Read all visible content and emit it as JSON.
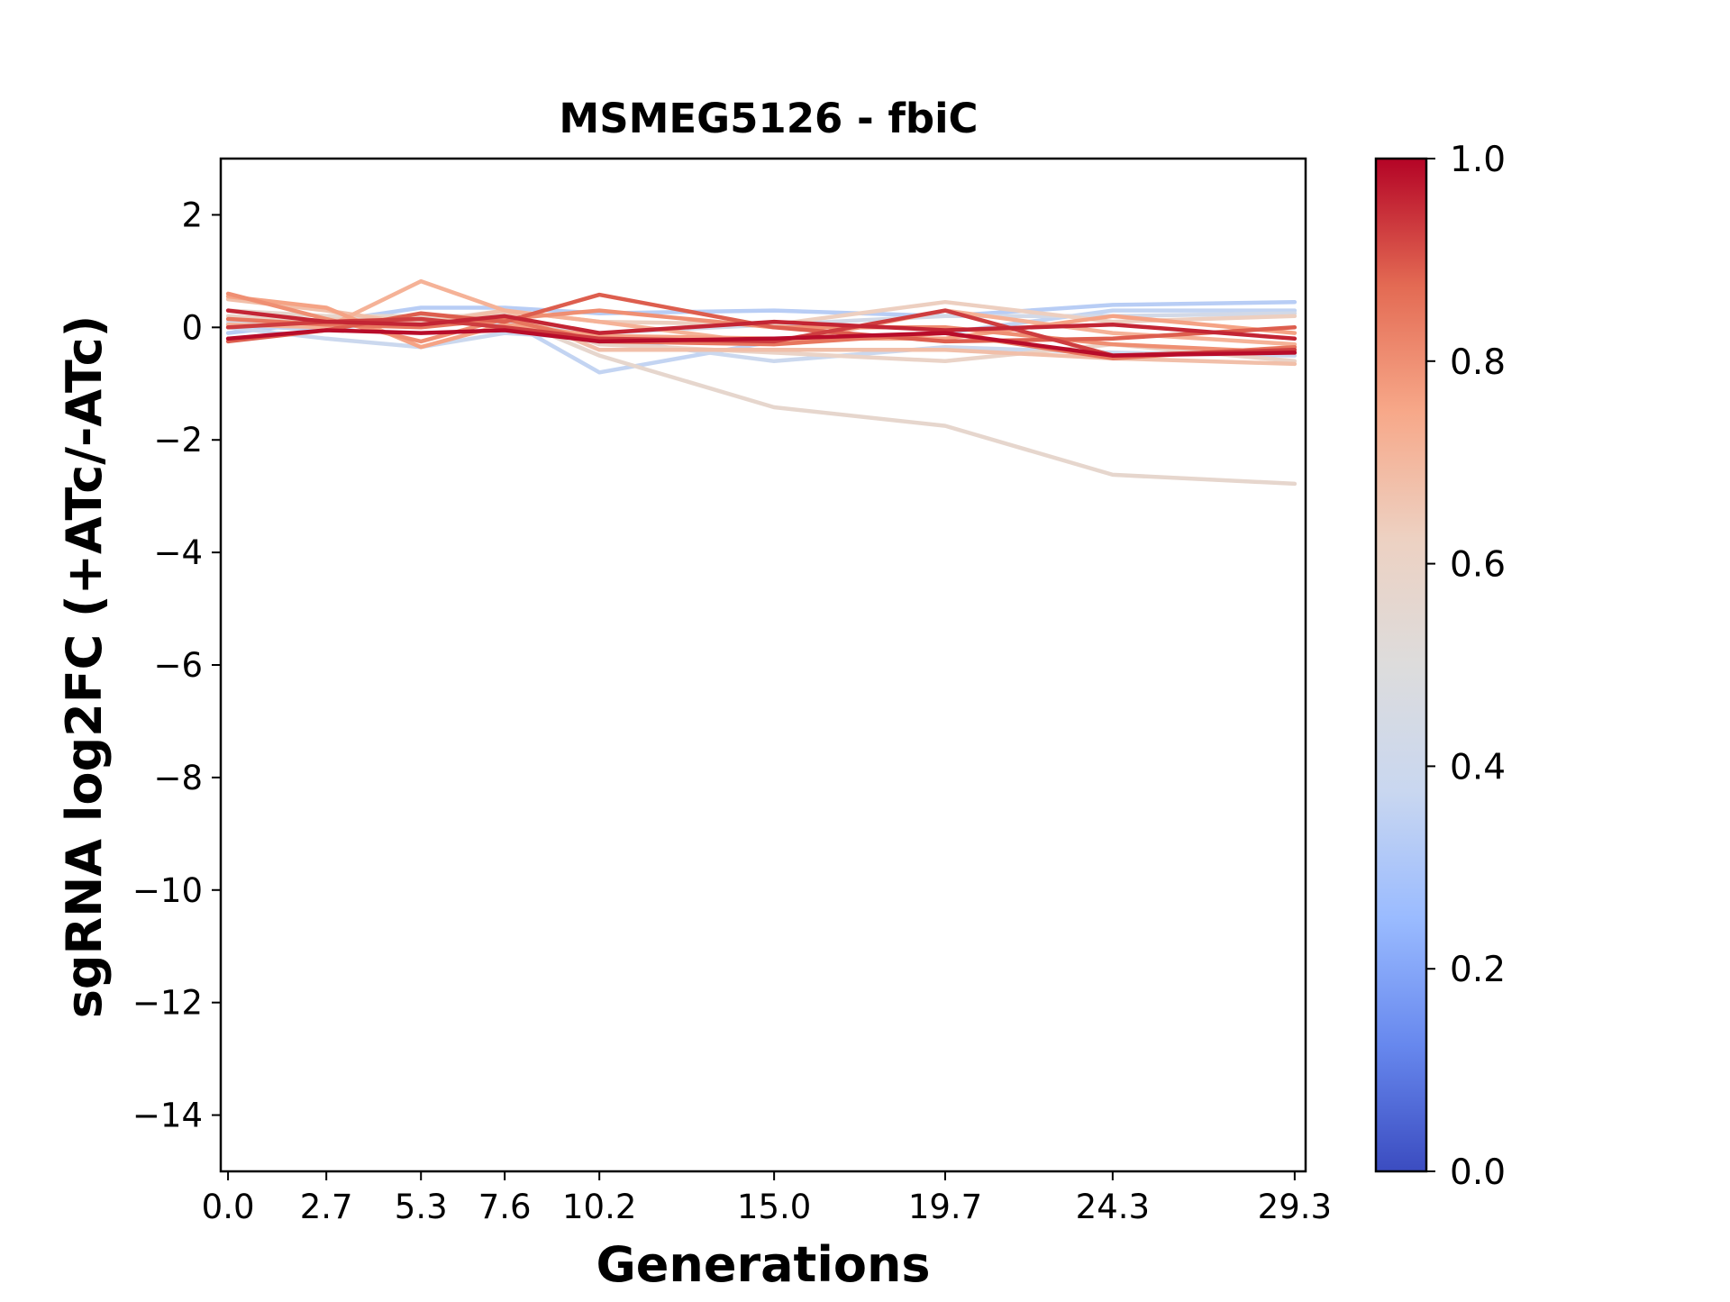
{
  "chart_data": {
    "type": "line",
    "title": "MSMEG5126 - fbiC",
    "xlabel": "Generations",
    "ylabel": "sgRNA log2FC (+ATc/-ATc)",
    "x": [
      0.0,
      2.7,
      5.3,
      7.6,
      10.2,
      15.0,
      19.7,
      24.3,
      29.3
    ],
    "x_tick_labels": [
      "0.0",
      "2.7",
      "5.3",
      "7.6",
      "10.2",
      "15.0",
      "19.7",
      "24.3",
      "29.3"
    ],
    "xlim": [
      -0.2,
      29.6
    ],
    "ylim": [
      -15,
      3
    ],
    "y_ticks": [
      2,
      0,
      -2,
      -4,
      -6,
      -8,
      -10,
      -12,
      -14
    ],
    "y_tick_labels": [
      "2",
      "0",
      "−2",
      "−4",
      "−6",
      "−8",
      "−10",
      "−12",
      "−14"
    ],
    "colormap": {
      "name": "coolwarm",
      "range": [
        0.0,
        1.0
      ],
      "ticks": [
        0.0,
        0.2,
        0.4,
        0.6,
        0.8,
        1.0
      ],
      "tick_labels": [
        "0.0",
        "0.2",
        "0.4",
        "0.6",
        "0.8",
        "1.0"
      ],
      "stops": [
        "#3b4cc0",
        "#6788ee",
        "#9abbff",
        "#c9d7f0",
        "#dddcdc",
        "#edd1c2",
        "#f7a889",
        "#e36a53",
        "#b40426"
      ]
    },
    "series": [
      {
        "color_value": 0.33,
        "values": [
          -0.1,
          0.1,
          0.35,
          0.35,
          0.25,
          0.3,
          0.2,
          0.4,
          0.45
        ]
      },
      {
        "color_value": 0.36,
        "values": [
          0.05,
          -0.05,
          0.2,
          0.15,
          -0.8,
          -0.25,
          -0.1,
          0.3,
          0.3
        ]
      },
      {
        "color_value": 0.39,
        "values": [
          0.0,
          -0.2,
          -0.35,
          -0.1,
          -0.2,
          -0.6,
          -0.35,
          -0.45,
          -0.5
        ]
      },
      {
        "color_value": 0.43,
        "values": [
          0.1,
          0.0,
          0.1,
          0.05,
          -0.1,
          0.05,
          0.2,
          0.2,
          0.25
        ]
      },
      {
        "color_value": 0.57,
        "values": [
          0.3,
          0.2,
          0.2,
          0.2,
          -0.5,
          -1.42,
          -1.75,
          -2.62,
          -2.78
        ]
      },
      {
        "color_value": 0.6,
        "values": [
          0.2,
          0.1,
          0.05,
          0.25,
          -0.3,
          -0.45,
          -0.6,
          -0.3,
          -0.6
        ]
      },
      {
        "color_value": 0.63,
        "values": [
          0.0,
          0.15,
          0.1,
          0.3,
          0.1,
          0.05,
          0.45,
          0.1,
          0.2
        ]
      },
      {
        "color_value": 0.68,
        "values": [
          0.5,
          0.3,
          0.05,
          0.3,
          -0.4,
          -0.4,
          -0.4,
          -0.55,
          -0.65
        ]
      },
      {
        "color_value": 0.72,
        "values": [
          0.05,
          0.0,
          0.82,
          0.3,
          0.1,
          -0.3,
          0.3,
          -0.1,
          -0.3
        ]
      },
      {
        "color_value": 0.76,
        "values": [
          0.55,
          0.35,
          -0.35,
          0.05,
          -0.15,
          -0.2,
          -0.2,
          0.2,
          -0.1
        ]
      },
      {
        "color_value": 0.8,
        "values": [
          0.6,
          0.15,
          -0.25,
          0.15,
          0.3,
          0.0,
          0.0,
          -0.3,
          -0.45
        ]
      },
      {
        "color_value": 0.85,
        "values": [
          0.15,
          0.05,
          0.0,
          0.15,
          -0.25,
          -0.3,
          -0.1,
          -0.55,
          -0.35
        ]
      },
      {
        "color_value": 0.89,
        "values": [
          -0.25,
          -0.05,
          0.25,
          0.1,
          0.58,
          0.0,
          -0.25,
          -0.2,
          0.0
        ]
      },
      {
        "color_value": 0.93,
        "values": [
          0.0,
          0.1,
          0.15,
          0.0,
          -0.2,
          -0.25,
          0.3,
          -0.5,
          -0.4
        ]
      },
      {
        "color_value": 0.96,
        "values": [
          0.3,
          0.1,
          0.05,
          0.2,
          -0.1,
          0.1,
          -0.05,
          0.05,
          -0.2
        ]
      },
      {
        "color_value": 0.99,
        "values": [
          -0.2,
          -0.05,
          -0.1,
          -0.05,
          -0.25,
          -0.2,
          -0.1,
          -0.5,
          -0.45
        ]
      }
    ]
  }
}
